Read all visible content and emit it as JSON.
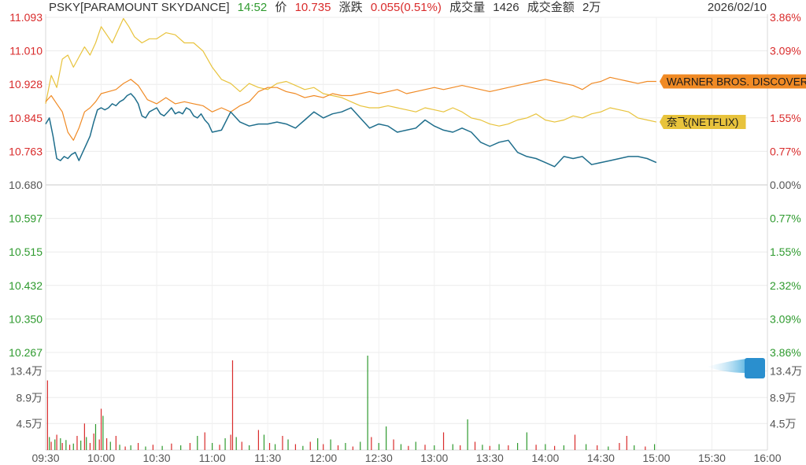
{
  "header": {
    "symbol": "PSKY[PARAMOUNT SKYDANCE]",
    "time": "14:52",
    "price_label": "价",
    "price": "10.735",
    "change_label": "涨跌",
    "change": "0.055(0.51%)",
    "volume_label": "成交量",
    "volume": "1426",
    "amount_label": "成交金额",
    "amount": "2万",
    "date": "2026/02/10"
  },
  "colors": {
    "up": "#d92b2b",
    "down": "#2e9a2e",
    "neutral": "#555555",
    "psky_line": "#1f6e8c",
    "wbd_line": "#f08a24",
    "nflx_line": "#e8c33c"
  },
  "chart_data": {
    "type": "line",
    "price_axis": {
      "labels_up": [
        "11.093",
        "11.010",
        "10.928",
        "10.845",
        "10.763"
      ],
      "label_base": "10.680",
      "labels_down": [
        "10.597",
        "10.515",
        "10.432",
        "10.350",
        "10.267"
      ],
      "ylim": [
        10.267,
        11.093
      ],
      "base": 10.68
    },
    "pct_axis": {
      "labels_up": [
        "3.86%",
        "3.09%",
        "2.32%",
        "1.55%",
        "0.77%"
      ],
      "label_base": "0.00%",
      "labels_down": [
        "0.77%",
        "1.55%",
        "2.32%",
        "3.09%",
        "3.86%"
      ]
    },
    "time_axis": {
      "labels": [
        "09:30",
        "10:00",
        "10:30",
        "11:00",
        "11:30",
        "12:00",
        "12:30",
        "13:00",
        "13:30",
        "14:00",
        "14:30",
        "15:00",
        "15:30",
        "16:00"
      ],
      "xlim": [
        0,
        390
      ]
    },
    "series": [
      {
        "name": "PSKY[PARAMOUNT SKYDANCE]",
        "x": [
          0,
          2,
          4,
          6,
          8,
          10,
          12,
          14,
          16,
          18,
          20,
          22,
          24,
          26,
          28,
          30,
          32,
          34,
          36,
          38,
          40,
          42,
          44,
          46,
          48,
          50,
          52,
          54,
          56,
          58,
          60,
          62,
          64,
          66,
          68,
          70,
          72,
          74,
          76,
          78,
          80,
          82,
          84,
          86,
          88,
          90,
          95,
          100,
          105,
          110,
          115,
          120,
          125,
          130,
          135,
          140,
          145,
          150,
          155,
          160,
          165,
          170,
          175,
          180,
          185,
          190,
          195,
          200,
          205,
          210,
          215,
          220,
          225,
          230,
          235,
          240,
          245,
          250,
          255,
          260,
          265,
          270,
          275,
          280,
          285,
          290,
          295,
          300,
          305,
          310,
          315,
          320,
          325,
          330
        ],
        "y": [
          10.83,
          10.845,
          10.8,
          10.745,
          10.74,
          10.75,
          10.745,
          10.755,
          10.76,
          10.74,
          10.76,
          10.78,
          10.8,
          10.835,
          10.865,
          10.87,
          10.865,
          10.87,
          10.88,
          10.875,
          10.885,
          10.89,
          10.9,
          10.905,
          10.895,
          10.88,
          10.85,
          10.845,
          10.86,
          10.865,
          10.87,
          10.855,
          10.85,
          10.86,
          10.87,
          10.855,
          10.86,
          10.855,
          10.87,
          10.865,
          10.85,
          10.845,
          10.855,
          10.84,
          10.83,
          10.81,
          10.815,
          10.86,
          10.835,
          10.825,
          10.83,
          10.83,
          10.835,
          10.83,
          10.82,
          10.84,
          10.86,
          10.845,
          10.855,
          10.86,
          10.87,
          10.845,
          10.82,
          10.83,
          10.825,
          10.81,
          10.815,
          10.82,
          10.84,
          10.825,
          10.815,
          10.81,
          10.82,
          10.81,
          10.785,
          10.775,
          10.785,
          10.79,
          10.76,
          10.75,
          10.745,
          10.735,
          10.725,
          10.75,
          10.745,
          10.75,
          10.73,
          10.735,
          10.74,
          10.745,
          10.75,
          10.75,
          10.745,
          10.735
        ]
      },
      {
        "name": "WARNER BROS. DISCOVERY",
        "x": [
          0,
          3,
          6,
          9,
          12,
          15,
          18,
          21,
          24,
          27,
          30,
          34,
          38,
          42,
          46,
          50,
          55,
          60,
          65,
          70,
          75,
          80,
          85,
          90,
          95,
          100,
          105,
          110,
          115,
          120,
          125,
          130,
          135,
          140,
          145,
          150,
          155,
          160,
          165,
          170,
          175,
          180,
          185,
          190,
          195,
          200,
          205,
          210,
          215,
          220,
          225,
          230,
          235,
          240,
          245,
          250,
          255,
          260,
          265,
          270,
          275,
          280,
          285,
          290,
          295,
          300,
          305,
          310,
          315,
          320,
          325,
          330
        ],
        "y": [
          10.885,
          10.9,
          10.88,
          10.86,
          10.81,
          10.79,
          10.82,
          10.86,
          10.87,
          10.885,
          10.905,
          10.91,
          10.915,
          10.93,
          10.94,
          10.925,
          10.89,
          10.88,
          10.895,
          10.88,
          10.885,
          10.88,
          10.875,
          10.86,
          10.87,
          10.86,
          10.875,
          10.885,
          10.91,
          10.92,
          10.92,
          10.91,
          10.905,
          10.895,
          10.9,
          10.895,
          10.905,
          10.9,
          10.9,
          10.905,
          10.91,
          10.905,
          10.91,
          10.915,
          10.905,
          10.91,
          10.915,
          10.92,
          10.915,
          10.92,
          10.925,
          10.92,
          10.915,
          10.91,
          10.915,
          10.92,
          10.925,
          10.93,
          10.935,
          10.94,
          10.935,
          10.93,
          10.925,
          10.915,
          10.93,
          10.935,
          10.945,
          10.94,
          10.935,
          10.93,
          10.935,
          10.935
        ]
      },
      {
        "name": "奈飞(NETFLIX)",
        "x": [
          0,
          3,
          6,
          9,
          12,
          15,
          18,
          21,
          24,
          27,
          30,
          33,
          36,
          39,
          42,
          45,
          48,
          52,
          56,
          60,
          65,
          70,
          75,
          80,
          85,
          90,
          95,
          100,
          105,
          110,
          115,
          120,
          125,
          130,
          135,
          140,
          145,
          150,
          155,
          160,
          165,
          170,
          175,
          180,
          185,
          190,
          195,
          200,
          205,
          210,
          215,
          220,
          225,
          230,
          235,
          240,
          245,
          250,
          255,
          260,
          265,
          270,
          275,
          280,
          285,
          290,
          295,
          300,
          305,
          310,
          315,
          320,
          325,
          330
        ],
        "y": [
          10.88,
          10.95,
          10.92,
          10.99,
          11.0,
          10.97,
          10.995,
          11.02,
          11.0,
          11.03,
          11.07,
          11.05,
          11.03,
          11.06,
          11.09,
          11.07,
          11.045,
          11.03,
          11.04,
          11.04,
          11.055,
          11.05,
          11.03,
          11.03,
          11.01,
          10.97,
          10.94,
          10.93,
          10.91,
          10.93,
          10.92,
          10.915,
          10.93,
          10.935,
          10.925,
          10.915,
          10.92,
          10.905,
          10.9,
          10.895,
          10.885,
          10.875,
          10.87,
          10.87,
          10.875,
          10.87,
          10.865,
          10.86,
          10.87,
          10.865,
          10.86,
          10.87,
          10.86,
          10.845,
          10.84,
          10.83,
          10.825,
          10.83,
          10.84,
          10.845,
          10.855,
          10.84,
          10.835,
          10.84,
          10.85,
          10.845,
          10.855,
          10.86,
          10.87,
          10.865,
          10.86,
          10.845,
          10.84,
          10.835
        ]
      }
    ],
    "legend_tags": [
      {
        "series": "WARNER BROS. DISCOVERY",
        "text": "WARNER BROS. DISCOVERY"
      },
      {
        "series": "奈飞(NETFLIX)",
        "text": "奈飞(NETFLIX)"
      }
    ],
    "volume": {
      "axis_labels": [
        "13.4万",
        "8.9万",
        "4.5万"
      ],
      "axis_values": [
        134000,
        89000,
        45000
      ],
      "ymax": 160000,
      "bars": [
        {
          "t": 1,
          "v": 118000,
          "d": "up"
        },
        {
          "t": 2,
          "v": 22000,
          "d": "down"
        },
        {
          "t": 3,
          "v": 14000,
          "d": "up"
        },
        {
          "t": 5,
          "v": 18000,
          "d": "down"
        },
        {
          "t": 6,
          "v": 26000,
          "d": "up"
        },
        {
          "t": 8,
          "v": 20000,
          "d": "down"
        },
        {
          "t": 9,
          "v": 12000,
          "d": "up"
        },
        {
          "t": 11,
          "v": 17000,
          "d": "down"
        },
        {
          "t": 13,
          "v": 9000,
          "d": "up"
        },
        {
          "t": 15,
          "v": 11000,
          "d": "down"
        },
        {
          "t": 17,
          "v": 24000,
          "d": "up"
        },
        {
          "t": 19,
          "v": 16000,
          "d": "down"
        },
        {
          "t": 21,
          "v": 45000,
          "d": "up"
        },
        {
          "t": 22,
          "v": 22000,
          "d": "down"
        },
        {
          "t": 24,
          "v": 12000,
          "d": "up"
        },
        {
          "t": 26,
          "v": 28000,
          "d": "up"
        },
        {
          "t": 27,
          "v": 44000,
          "d": "down"
        },
        {
          "t": 29,
          "v": 18000,
          "d": "up"
        },
        {
          "t": 30,
          "v": 70000,
          "d": "up"
        },
        {
          "t": 31,
          "v": 58000,
          "d": "down"
        },
        {
          "t": 33,
          "v": 20000,
          "d": "up"
        },
        {
          "t": 35,
          "v": 14000,
          "d": "down"
        },
        {
          "t": 38,
          "v": 24000,
          "d": "up"
        },
        {
          "t": 40,
          "v": 9000,
          "d": "down"
        },
        {
          "t": 43,
          "v": 6000,
          "d": "up"
        },
        {
          "t": 46,
          "v": 8000,
          "d": "down"
        },
        {
          "t": 50,
          "v": 12000,
          "d": "up"
        },
        {
          "t": 54,
          "v": 6000,
          "d": "down"
        },
        {
          "t": 58,
          "v": 9000,
          "d": "up"
        },
        {
          "t": 63,
          "v": 7000,
          "d": "down"
        },
        {
          "t": 68,
          "v": 11000,
          "d": "up"
        },
        {
          "t": 73,
          "v": 8000,
          "d": "down"
        },
        {
          "t": 78,
          "v": 12000,
          "d": "up"
        },
        {
          "t": 82,
          "v": 24000,
          "d": "down"
        },
        {
          "t": 86,
          "v": 30000,
          "d": "up"
        },
        {
          "t": 90,
          "v": 12000,
          "d": "down"
        },
        {
          "t": 94,
          "v": 9000,
          "d": "up"
        },
        {
          "t": 97,
          "v": 20000,
          "d": "down"
        },
        {
          "t": 100,
          "v": 26000,
          "d": "up"
        },
        {
          "t": 101,
          "v": 152000,
          "d": "up"
        },
        {
          "t": 103,
          "v": 22000,
          "d": "down"
        },
        {
          "t": 106,
          "v": 14000,
          "d": "up"
        },
        {
          "t": 110,
          "v": 8000,
          "d": "down"
        },
        {
          "t": 115,
          "v": 34000,
          "d": "up"
        },
        {
          "t": 118,
          "v": 26000,
          "d": "down"
        },
        {
          "t": 121,
          "v": 12000,
          "d": "up"
        },
        {
          "t": 124,
          "v": 10000,
          "d": "down"
        },
        {
          "t": 128,
          "v": 24000,
          "d": "up"
        },
        {
          "t": 131,
          "v": 18000,
          "d": "down"
        },
        {
          "t": 135,
          "v": 10000,
          "d": "up"
        },
        {
          "t": 139,
          "v": 7000,
          "d": "down"
        },
        {
          "t": 143,
          "v": 14000,
          "d": "up"
        },
        {
          "t": 147,
          "v": 20000,
          "d": "down"
        },
        {
          "t": 150,
          "v": 10000,
          "d": "up"
        },
        {
          "t": 154,
          "v": 18000,
          "d": "down"
        },
        {
          "t": 158,
          "v": 8000,
          "d": "up"
        },
        {
          "t": 162,
          "v": 12000,
          "d": "down"
        },
        {
          "t": 166,
          "v": 6000,
          "d": "up"
        },
        {
          "t": 170,
          "v": 14000,
          "d": "down"
        },
        {
          "t": 174,
          "v": 160000,
          "d": "down"
        },
        {
          "t": 176,
          "v": 22000,
          "d": "up"
        },
        {
          "t": 180,
          "v": 12000,
          "d": "down"
        },
        {
          "t": 184,
          "v": 40000,
          "d": "down"
        },
        {
          "t": 188,
          "v": 18000,
          "d": "up"
        },
        {
          "t": 192,
          "v": 10000,
          "d": "down"
        },
        {
          "t": 196,
          "v": 7000,
          "d": "up"
        },
        {
          "t": 200,
          "v": 14000,
          "d": "down"
        },
        {
          "t": 205,
          "v": 9000,
          "d": "up"
        },
        {
          "t": 210,
          "v": 8000,
          "d": "down"
        },
        {
          "t": 215,
          "v": 30000,
          "d": "up"
        },
        {
          "t": 220,
          "v": 10000,
          "d": "down"
        },
        {
          "t": 224,
          "v": 8000,
          "d": "up"
        },
        {
          "t": 228,
          "v": 52000,
          "d": "down"
        },
        {
          "t": 232,
          "v": 14000,
          "d": "up"
        },
        {
          "t": 236,
          "v": 9000,
          "d": "down"
        },
        {
          "t": 240,
          "v": 7000,
          "d": "up"
        },
        {
          "t": 245,
          "v": 10000,
          "d": "down"
        },
        {
          "t": 250,
          "v": 8000,
          "d": "up"
        },
        {
          "t": 255,
          "v": 12000,
          "d": "down"
        },
        {
          "t": 260,
          "v": 30000,
          "d": "down"
        },
        {
          "t": 265,
          "v": 9000,
          "d": "up"
        },
        {
          "t": 270,
          "v": 10000,
          "d": "down"
        },
        {
          "t": 275,
          "v": 7000,
          "d": "up"
        },
        {
          "t": 280,
          "v": 8000,
          "d": "down"
        },
        {
          "t": 286,
          "v": 26000,
          "d": "up"
        },
        {
          "t": 292,
          "v": 10000,
          "d": "down"
        },
        {
          "t": 298,
          "v": 8000,
          "d": "up"
        },
        {
          "t": 304,
          "v": 6000,
          "d": "down"
        },
        {
          "t": 310,
          "v": 12000,
          "d": "up"
        },
        {
          "t": 314,
          "v": 24000,
          "d": "up"
        },
        {
          "t": 318,
          "v": 8000,
          "d": "down"
        },
        {
          "t": 324,
          "v": 6000,
          "d": "up"
        },
        {
          "t": 329,
          "v": 10000,
          "d": "down"
        }
      ]
    }
  }
}
